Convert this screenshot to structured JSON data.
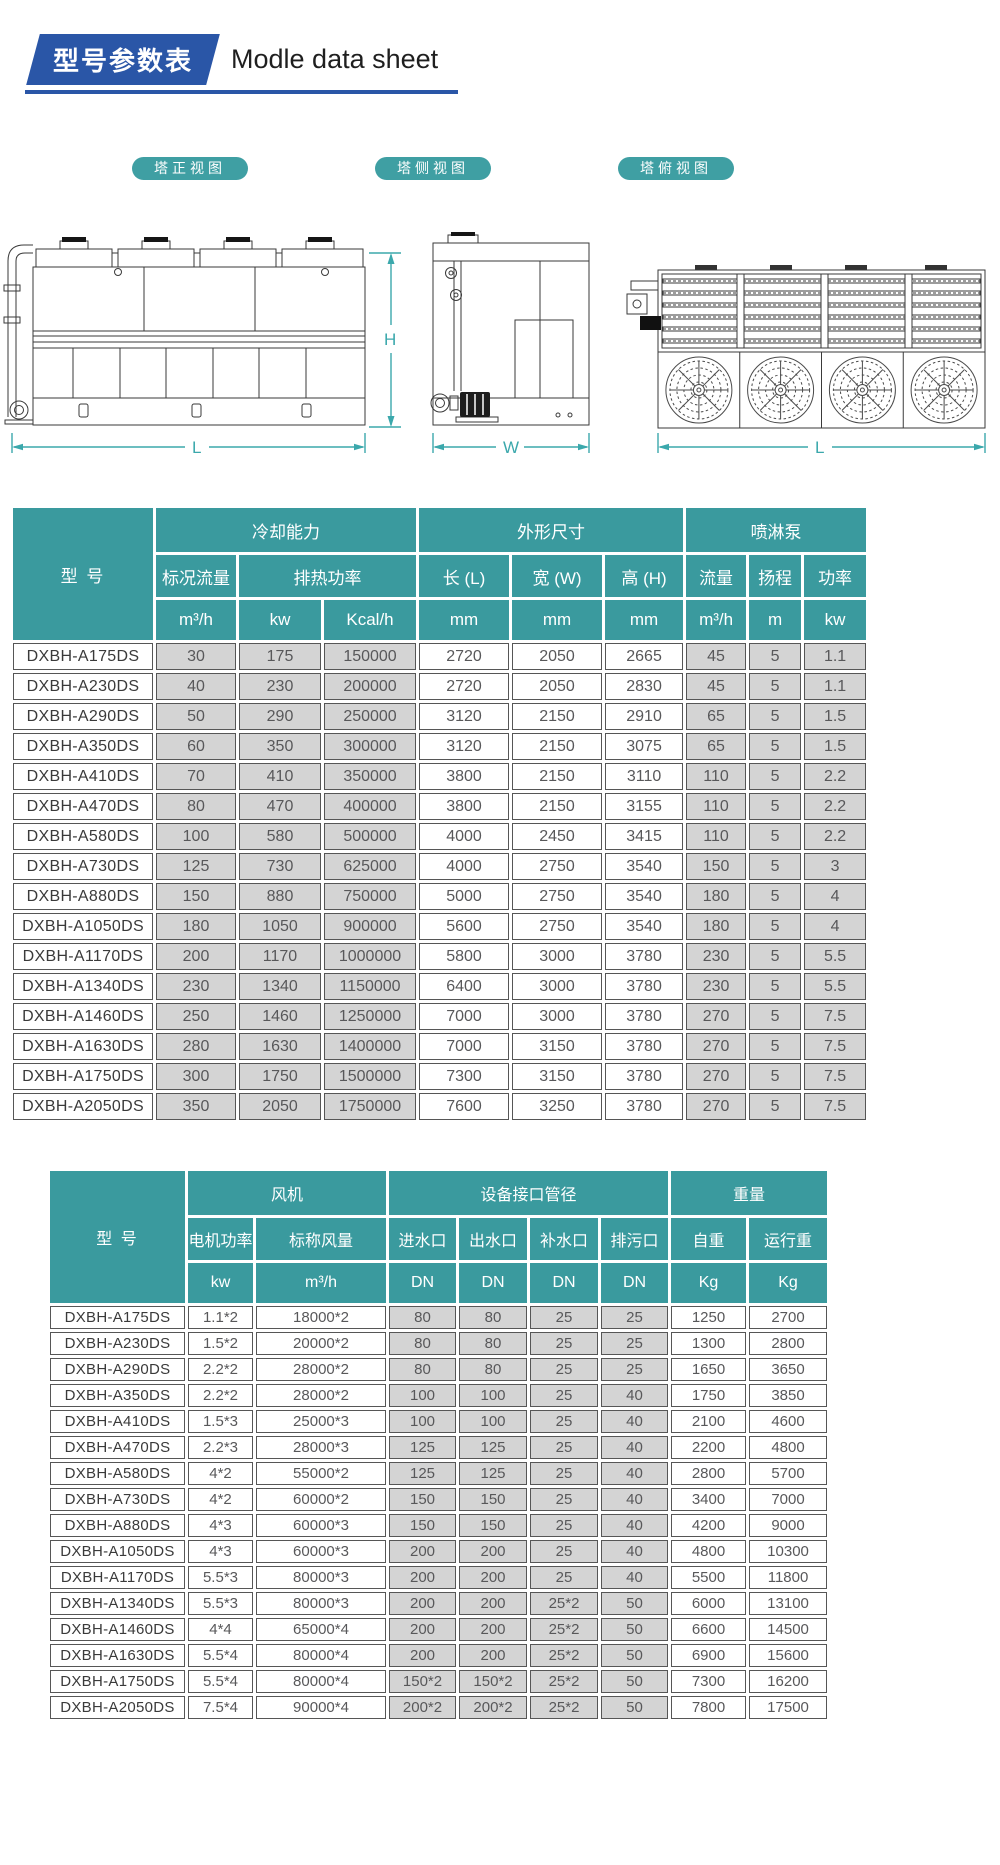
{
  "header": {
    "title_zh": "型号参数表",
    "title_en": "Modle data sheet"
  },
  "views": {
    "front": {
      "label": "塔正视图",
      "dim_height": "H",
      "dim_length": "L"
    },
    "side": {
      "label": "塔侧视图",
      "dim_width": "W"
    },
    "top": {
      "label": "塔俯视图",
      "dim_length": "L"
    }
  },
  "table1": {
    "model_header": "型 号",
    "groups": [
      "冷却能力",
      "外形尺寸",
      "喷淋泵"
    ],
    "subheaders": [
      "标况流量",
      "排热功率",
      "长 (L)",
      "宽 (W)",
      "高 (H)",
      "流量",
      "扬程",
      "功率"
    ],
    "units": [
      "m³/h",
      "kw",
      "Kcal/h",
      "mm",
      "mm",
      "mm",
      "m³/h",
      "m",
      "kw"
    ],
    "rows": [
      [
        "DXBH-A175DS",
        "30",
        "175",
        "150000",
        "2720",
        "2050",
        "2665",
        "45",
        "5",
        "1.1"
      ],
      [
        "DXBH-A230DS",
        "40",
        "230",
        "200000",
        "2720",
        "2050",
        "2830",
        "45",
        "5",
        "1.1"
      ],
      [
        "DXBH-A290DS",
        "50",
        "290",
        "250000",
        "3120",
        "2150",
        "2910",
        "65",
        "5",
        "1.5"
      ],
      [
        "DXBH-A350DS",
        "60",
        "350",
        "300000",
        "3120",
        "2150",
        "3075",
        "65",
        "5",
        "1.5"
      ],
      [
        "DXBH-A410DS",
        "70",
        "410",
        "350000",
        "3800",
        "2150",
        "3110",
        "110",
        "5",
        "2.2"
      ],
      [
        "DXBH-A470DS",
        "80",
        "470",
        "400000",
        "3800",
        "2150",
        "3155",
        "110",
        "5",
        "2.2"
      ],
      [
        "DXBH-A580DS",
        "100",
        "580",
        "500000",
        "4000",
        "2450",
        "3415",
        "110",
        "5",
        "2.2"
      ],
      [
        "DXBH-A730DS",
        "125",
        "730",
        "625000",
        "4000",
        "2750",
        "3540",
        "150",
        "5",
        "3"
      ],
      [
        "DXBH-A880DS",
        "150",
        "880",
        "750000",
        "5000",
        "2750",
        "3540",
        "180",
        "5",
        "4"
      ],
      [
        "DXBH-A1050DS",
        "180",
        "1050",
        "900000",
        "5600",
        "2750",
        "3540",
        "180",
        "5",
        "4"
      ],
      [
        "DXBH-A1170DS",
        "200",
        "1170",
        "1000000",
        "5800",
        "3000",
        "3780",
        "230",
        "5",
        "5.5"
      ],
      [
        "DXBH-A1340DS",
        "230",
        "1340",
        "1150000",
        "6400",
        "3000",
        "3780",
        "230",
        "5",
        "5.5"
      ],
      [
        "DXBH-A1460DS",
        "250",
        "1460",
        "1250000",
        "7000",
        "3000",
        "3780",
        "270",
        "5",
        "7.5"
      ],
      [
        "DXBH-A1630DS",
        "280",
        "1630",
        "1400000",
        "7000",
        "3150",
        "3780",
        "270",
        "5",
        "7.5"
      ],
      [
        "DXBH-A1750DS",
        "300",
        "1750",
        "1500000",
        "7300",
        "3150",
        "3780",
        "270",
        "5",
        "7.5"
      ],
      [
        "DXBH-A2050DS",
        "350",
        "2050",
        "1750000",
        "7600",
        "3250",
        "3780",
        "270",
        "5",
        "7.5"
      ]
    ]
  },
  "table2": {
    "model_header": "型 号",
    "groups": [
      "风机",
      "设备接口管径",
      "重量"
    ],
    "subheaders": [
      "电机功率",
      "标称风量",
      "进水口",
      "出水口",
      "补水口",
      "排污口",
      "自重",
      "运行重"
    ],
    "units": [
      "kw",
      "m³/h",
      "DN",
      "DN",
      "DN",
      "DN",
      "Kg",
      "Kg"
    ],
    "rows": [
      [
        "DXBH-A175DS",
        "1.1*2",
        "18000*2",
        "80",
        "80",
        "25",
        "25",
        "1250",
        "2700"
      ],
      [
        "DXBH-A230DS",
        "1.5*2",
        "20000*2",
        "80",
        "80",
        "25",
        "25",
        "1300",
        "2800"
      ],
      [
        "DXBH-A290DS",
        "2.2*2",
        "28000*2",
        "80",
        "80",
        "25",
        "25",
        "1650",
        "3650"
      ],
      [
        "DXBH-A350DS",
        "2.2*2",
        "28000*2",
        "100",
        "100",
        "25",
        "40",
        "1750",
        "3850"
      ],
      [
        "DXBH-A410DS",
        "1.5*3",
        "25000*3",
        "100",
        "100",
        "25",
        "40",
        "2100",
        "4600"
      ],
      [
        "DXBH-A470DS",
        "2.2*3",
        "28000*3",
        "125",
        "125",
        "25",
        "40",
        "2200",
        "4800"
      ],
      [
        "DXBH-A580DS",
        "4*2",
        "55000*2",
        "125",
        "125",
        "25",
        "40",
        "2800",
        "5700"
      ],
      [
        "DXBH-A730DS",
        "4*2",
        "60000*2",
        "150",
        "150",
        "25",
        "40",
        "3400",
        "7000"
      ],
      [
        "DXBH-A880DS",
        "4*3",
        "60000*3",
        "150",
        "150",
        "25",
        "40",
        "4200",
        "9000"
      ],
      [
        "DXBH-A1050DS",
        "4*3",
        "60000*3",
        "200",
        "200",
        "25",
        "40",
        "4800",
        "10300"
      ],
      [
        "DXBH-A1170DS",
        "5.5*3",
        "80000*3",
        "200",
        "200",
        "25",
        "40",
        "5500",
        "11800"
      ],
      [
        "DXBH-A1340DS",
        "5.5*3",
        "80000*3",
        "200",
        "200",
        "25*2",
        "50",
        "6000",
        "13100"
      ],
      [
        "DXBH-A1460DS",
        "4*4",
        "65000*4",
        "200",
        "200",
        "25*2",
        "50",
        "6600",
        "14500"
      ],
      [
        "DXBH-A1630DS",
        "5.5*4",
        "80000*4",
        "200",
        "200",
        "25*2",
        "50",
        "6900",
        "15600"
      ],
      [
        "DXBH-A1750DS",
        "5.5*4",
        "80000*4",
        "150*2",
        "150*2",
        "25*2",
        "50",
        "7300",
        "16200"
      ],
      [
        "DXBH-A2050DS",
        "7.5*4",
        "90000*4",
        "200*2",
        "200*2",
        "25*2",
        "50",
        "7800",
        "17500"
      ]
    ]
  },
  "colors": {
    "teal_header": "#3A9A9E",
    "banner_blue": "#2A56A7",
    "dim_teal": "#3BA8AC",
    "cell_gray": "#D4D4D4"
  }
}
